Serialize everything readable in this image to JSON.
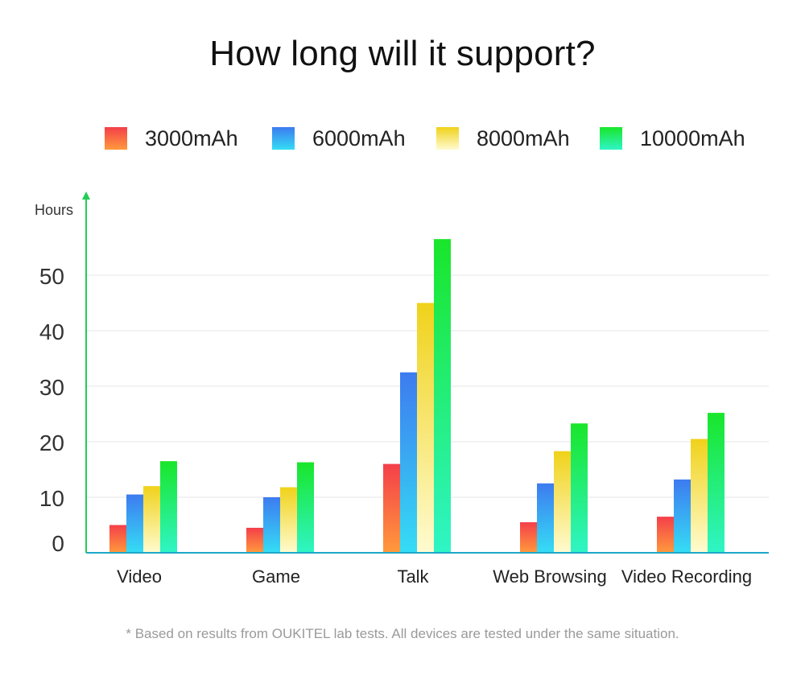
{
  "title": "How long will it support?",
  "footnote": "* Based on results from OUKITEL lab tests. All devices are tested under the same situation.",
  "chart_data": {
    "type": "bar",
    "ylabel": "Hours",
    "xlabel": "",
    "ylim": [
      0,
      57
    ],
    "yticks": [
      0,
      10,
      20,
      30,
      40,
      50
    ],
    "grid": true,
    "legend_position": "top",
    "categories": [
      "Video",
      "Game",
      "Talk",
      "Web Browsing",
      "Video Recording"
    ],
    "series": [
      {
        "name": "3000mAh",
        "values": [
          5,
          4.5,
          16,
          5.5,
          6.5
        ],
        "color_top": "#f43f4a",
        "color_bottom": "#ff9a3c"
      },
      {
        "name": "6000mAh",
        "values": [
          10.5,
          10,
          32.5,
          12.5,
          13.2
        ],
        "color_top": "#3d7bf0",
        "color_bottom": "#35ddf5"
      },
      {
        "name": "8000mAh",
        "values": [
          12,
          11.8,
          45,
          18.3,
          20.5
        ],
        "color_top": "#f0d21a",
        "color_bottom": "#fffbd0"
      },
      {
        "name": "10000mAh",
        "values": [
          16.5,
          16.3,
          56.5,
          23.3,
          25.2
        ],
        "color_top": "#19e62a",
        "color_bottom": "#2ff5c6"
      }
    ]
  }
}
